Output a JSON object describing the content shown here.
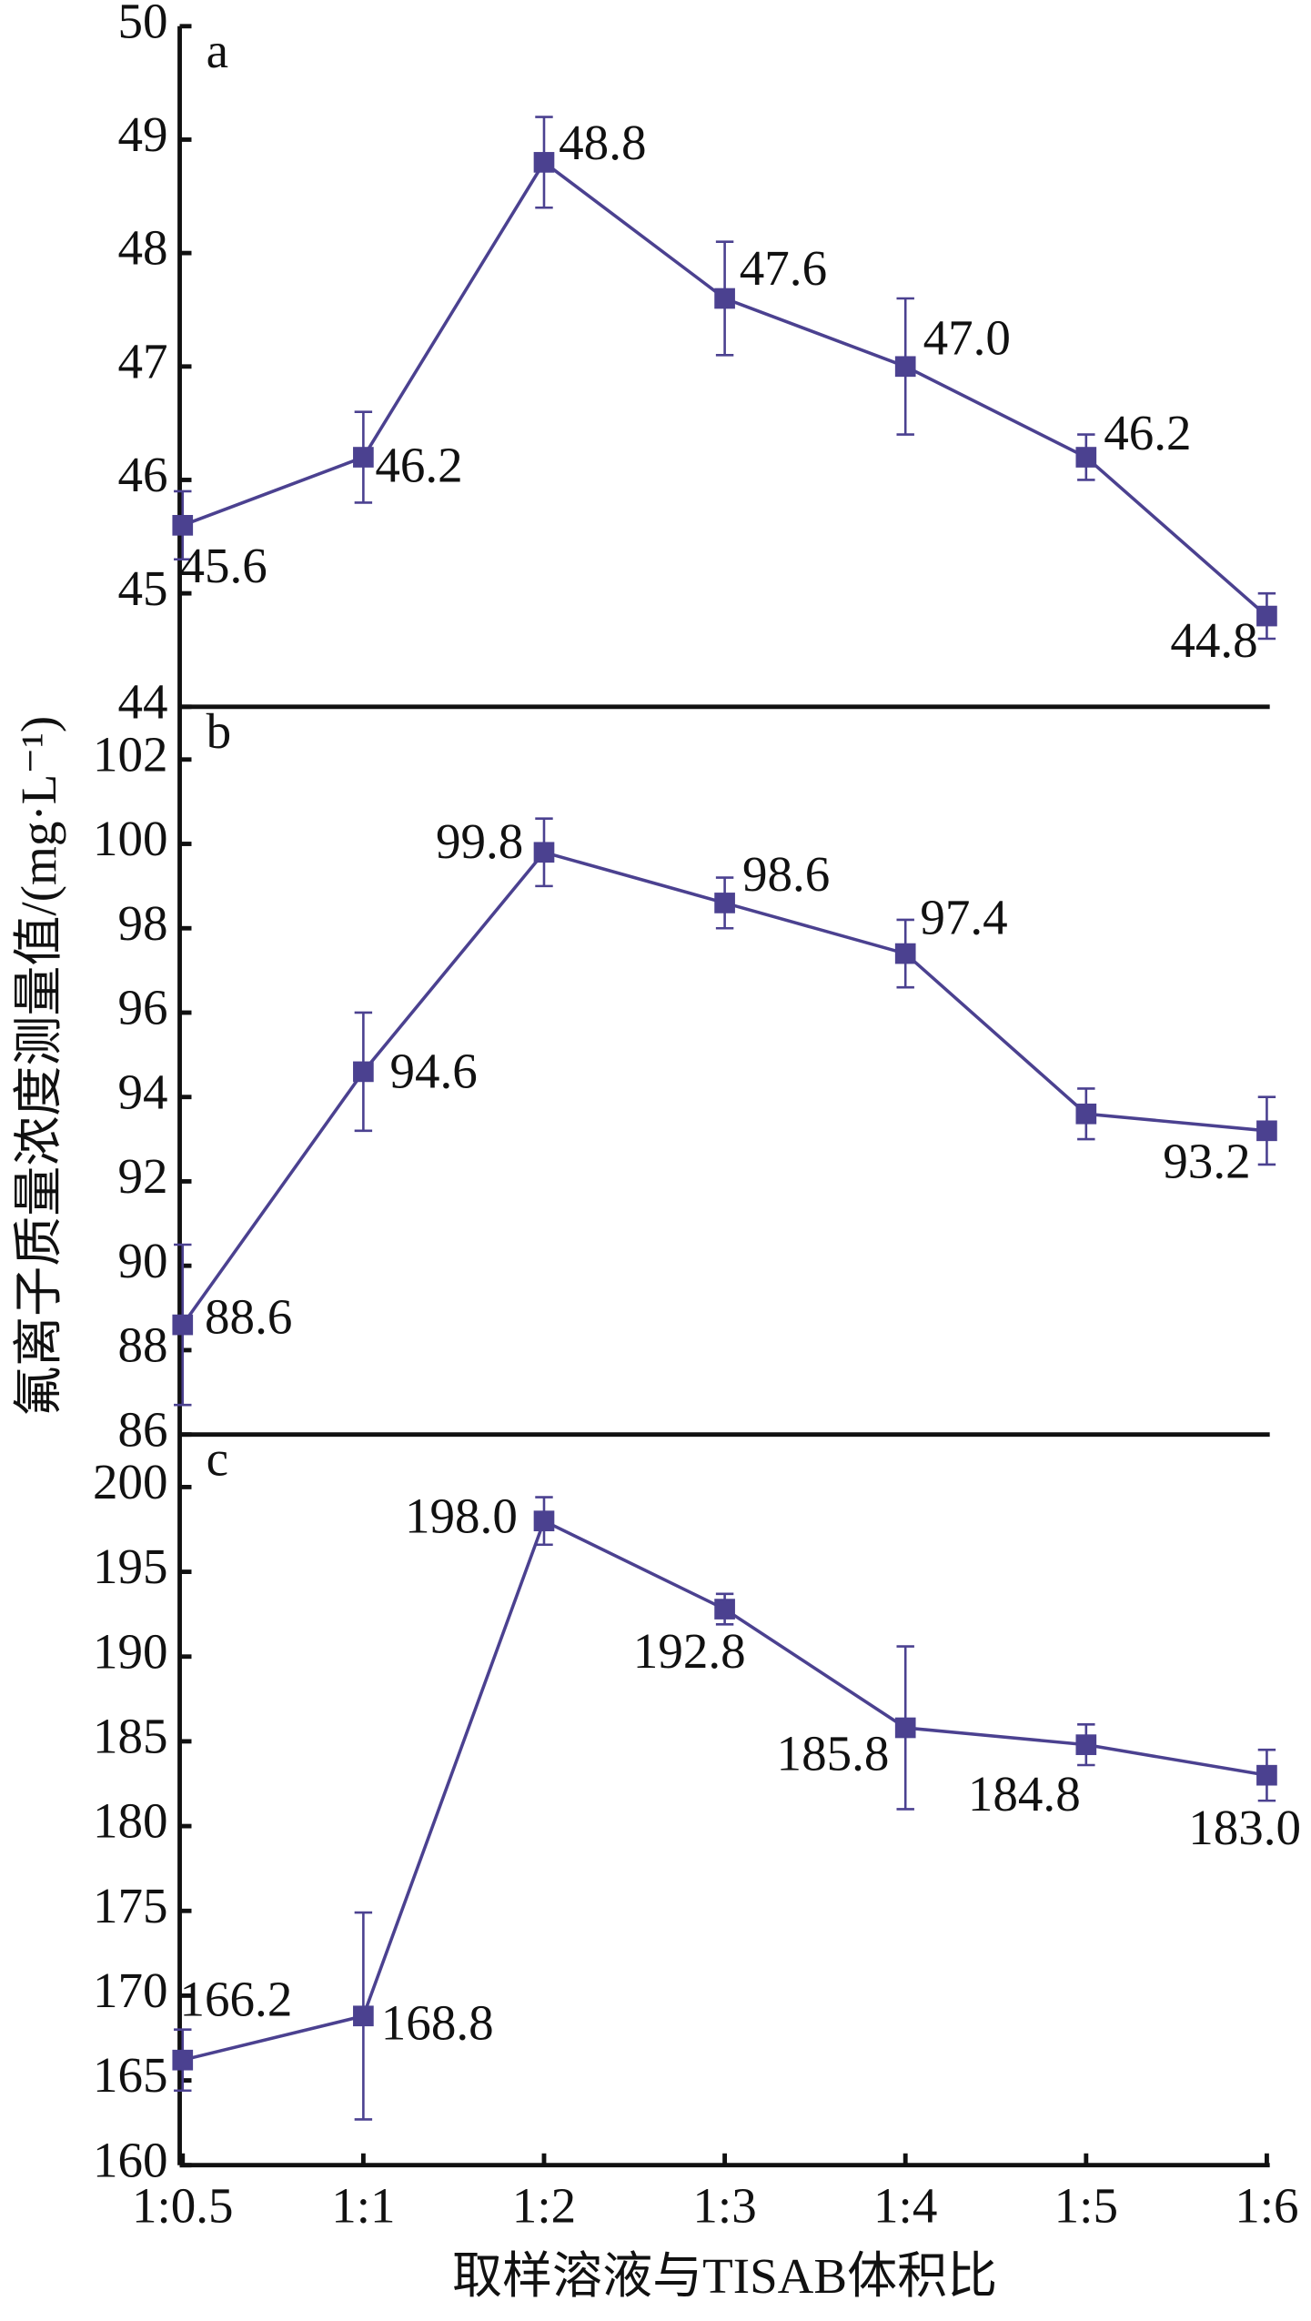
{
  "chart_data": [
    {
      "type": "line",
      "panel_label": "a",
      "color": "#4b4190",
      "values": [
        45.6,
        46.2,
        48.8,
        47.6,
        47.0,
        46.2,
        44.8
      ],
      "value_labels": [
        "45.6",
        "46.2",
        "48.8",
        "47.6",
        "47.0",
        "46.2",
        "44.8"
      ],
      "errors": [
        0.3,
        0.4,
        0.4,
        0.5,
        0.6,
        0.2,
        0.2
      ],
      "ylim": [
        44,
        50
      ],
      "yticks": [
        44,
        45,
        46,
        47,
        48,
        49,
        50
      ]
    },
    {
      "type": "line",
      "panel_label": "b",
      "color": "#4b4190",
      "ylabel": "氟离子质量浓度测量值/(mg·L⁻¹)",
      "values": [
        88.6,
        94.6,
        99.8,
        98.6,
        97.4,
        93.6,
        93.2
      ],
      "value_labels": [
        "88.6",
        "94.6",
        "99.8",
        "98.6",
        "97.4",
        null,
        "93.2"
      ],
      "errors": [
        1.9,
        1.4,
        0.8,
        0.6,
        0.8,
        0.6,
        0.8
      ],
      "ylim": [
        86,
        103.25
      ],
      "yticks": [
        86,
        88,
        90,
        92,
        94,
        96,
        98,
        100,
        102
      ]
    },
    {
      "type": "line",
      "panel_label": "c",
      "color": "#4b4190",
      "xlabel": "取样溶液与TISAB体积比",
      "categories": [
        "1:0.5",
        "1:1",
        "1:2",
        "1:3",
        "1:4",
        "1:5",
        "1:6"
      ],
      "values": [
        166.2,
        168.8,
        198.0,
        192.8,
        185.8,
        184.8,
        183.0
      ],
      "value_labels": [
        "166.2",
        "168.8",
        "198.0",
        "192.8",
        "185.8",
        "184.8",
        "183.0"
      ],
      "errors": [
        1.8,
        6.1,
        1.4,
        0.9,
        4.8,
        1.2,
        1.5
      ],
      "ylim": [
        160,
        203.1
      ],
      "yticks": [
        160,
        165,
        170,
        175,
        180,
        185,
        190,
        195,
        200
      ]
    }
  ]
}
